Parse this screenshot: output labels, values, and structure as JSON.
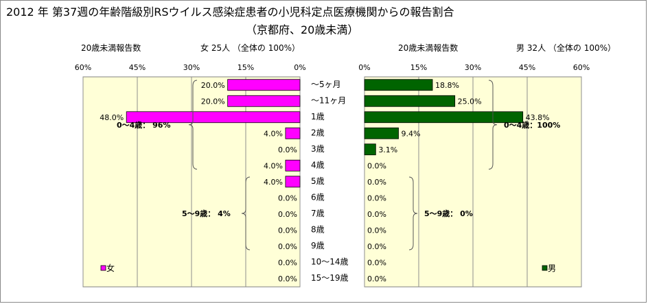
{
  "title": "2012 年 第37週の年齢階級別RSウイルス感染症患者の小児科定点医療機関からの報告割合",
  "subtitle": "（京都府、20歳未満）",
  "headers": {
    "left_count_label": "20歳未満報告数",
    "left_sex_summary": "女  25人 （全体の  100%）",
    "right_count_label": "20歳未満報告数",
    "right_sex_summary": "男  32人 （全体の  100%）"
  },
  "colors": {
    "female": "#ff00ff",
    "male": "#006400",
    "plot_background": "#ffffd7",
    "grid": "#8c8c8c"
  },
  "chart_data": {
    "type": "bar",
    "orientation": "horizontal",
    "categories": [
      "～5ヶ月",
      "～11ヶ月",
      "1歳",
      "2歳",
      "3歳",
      "4歳",
      "5歳",
      "6歳",
      "7歳",
      "8歳",
      "9歳",
      "10～14歳",
      "15～19歳"
    ],
    "axis_ticks": [
      "0%",
      "15%",
      "30%",
      "45%",
      "60%"
    ],
    "xlim": [
      0,
      60
    ],
    "grid": true,
    "series": [
      {
        "name": "女",
        "side": "left",
        "values": [
          20.0,
          20.0,
          48.0,
          4.0,
          0.0,
          4.0,
          4.0,
          0.0,
          0.0,
          0.0,
          0.0,
          0.0,
          0.0
        ],
        "labels": [
          "20.0%",
          "20.0%",
          "48.0%",
          "4.0%",
          "0.0%",
          "4.0%",
          "4.0%",
          "0.0%",
          "0.0%",
          "0.0%",
          "0.0%",
          "0.0%",
          "0.0%"
        ],
        "legend": "女",
        "legend_position": "bottom-left",
        "brackets": [
          {
            "from": 0,
            "to": 5,
            "label": "0～4歳： 96%"
          },
          {
            "from": 6,
            "to": 10,
            "label": "5～9歳： 4%"
          }
        ]
      },
      {
        "name": "男",
        "side": "right",
        "values": [
          18.8,
          25.0,
          43.8,
          9.4,
          3.1,
          0.0,
          0.0,
          0.0,
          0.0,
          0.0,
          0.0,
          0.0,
          0.0
        ],
        "labels": [
          "18.8%",
          "25.0%",
          "43.8%",
          "9.4%",
          "3.1%",
          "0.0%",
          "0.0%",
          "0.0%",
          "0.0%",
          "0.0%",
          "0.0%",
          "0.0%",
          "0.0%"
        ],
        "legend": "男",
        "legend_position": "bottom-right",
        "brackets": [
          {
            "from": 0,
            "to": 5,
            "label": "0～4歳：100%"
          },
          {
            "from": 6,
            "to": 10,
            "label": "5～9歳： 0%"
          }
        ]
      }
    ]
  }
}
